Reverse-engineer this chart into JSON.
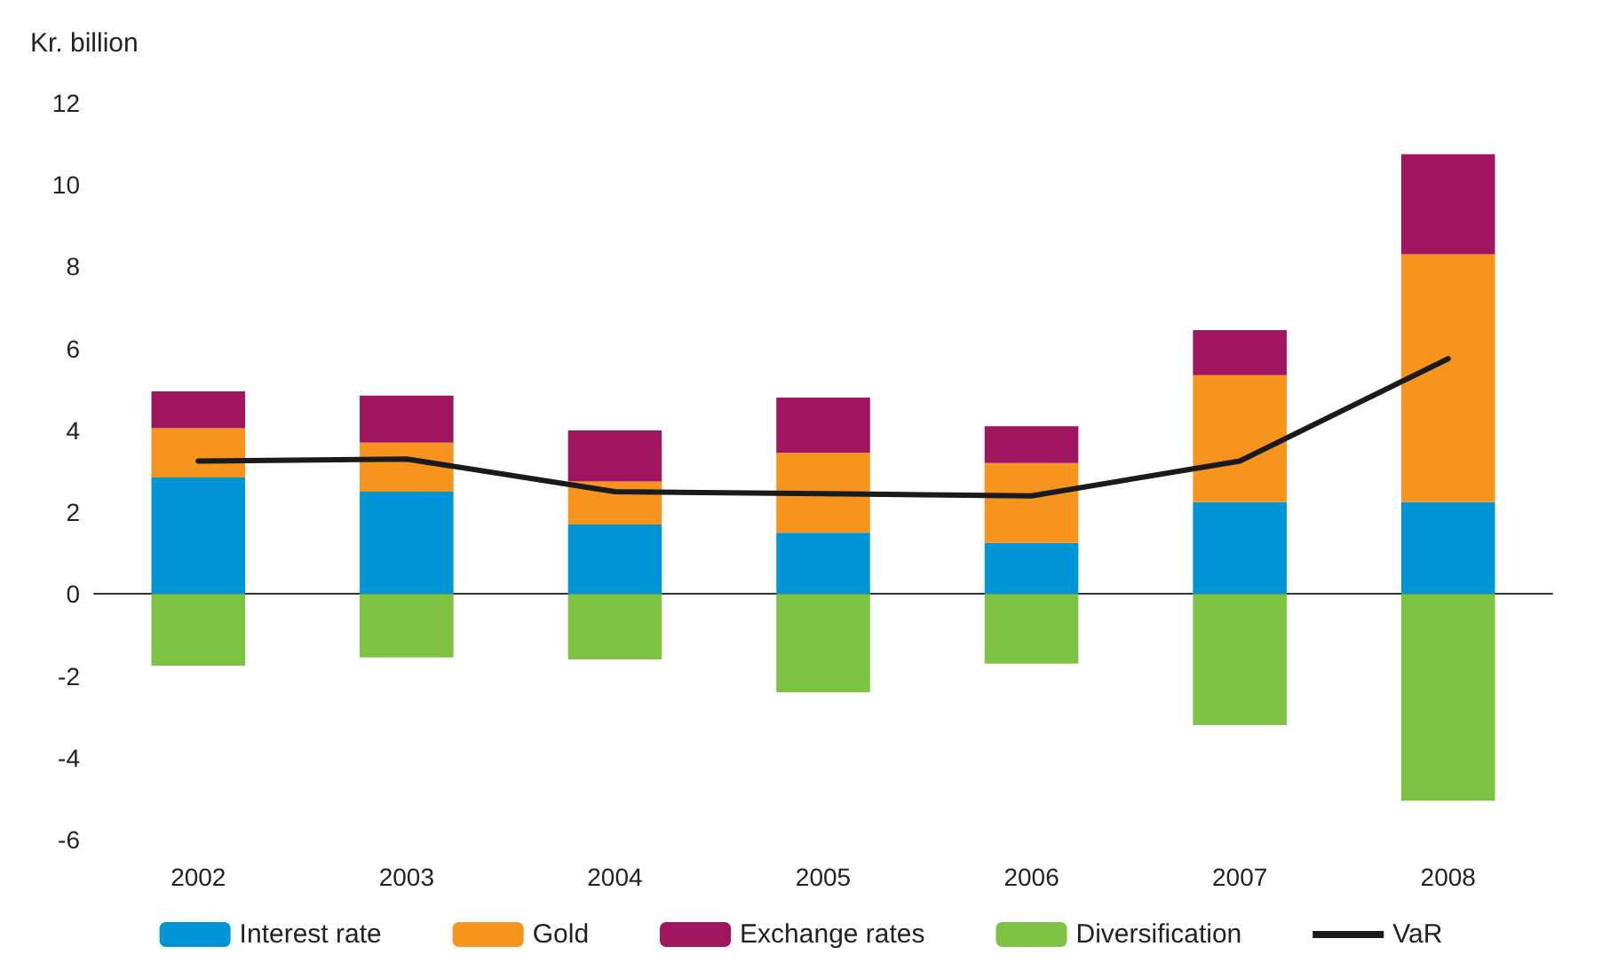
{
  "chart_data": {
    "type": "bar",
    "stacked": true,
    "ylabel": "Kr. billion",
    "categories": [
      "2002",
      "2003",
      "2004",
      "2005",
      "2006",
      "2007",
      "2008"
    ],
    "ylim": [
      -6,
      12
    ],
    "yticks": [
      -6,
      -4,
      -2,
      0,
      2,
      4,
      6,
      8,
      10,
      12
    ],
    "legend": "bottom",
    "series": [
      {
        "name": "Interest rate",
        "color": "#0096d6",
        "values": [
          2.85,
          2.5,
          1.7,
          1.5,
          1.25,
          2.25,
          2.25
        ]
      },
      {
        "name": "Gold",
        "color": "#f7941d",
        "values": [
          1.2,
          1.2,
          1.05,
          1.95,
          1.95,
          3.1,
          6.05
        ]
      },
      {
        "name": "Exchange rates",
        "color": "#a0165e",
        "values": [
          0.9,
          1.15,
          1.25,
          1.35,
          0.9,
          1.1,
          2.45
        ]
      },
      {
        "name": "Diversification",
        "color": "#7dc242",
        "values": [
          -1.75,
          -1.55,
          -1.6,
          -2.4,
          -1.7,
          -3.2,
          -5.05
        ]
      },
      {
        "name": "VaR",
        "type": "line",
        "color": "#1a1a1a",
        "marker": "none",
        "line_style": "solid",
        "values": [
          3.25,
          3.3,
          2.5,
          2.45,
          2.4,
          3.25,
          5.75
        ]
      }
    ]
  }
}
